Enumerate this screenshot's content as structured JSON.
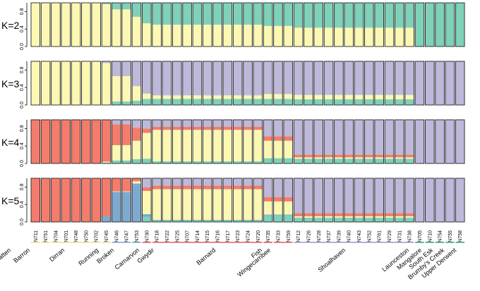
{
  "chart_data": {
    "type": "structure-barplot",
    "colors": {
      "yellow": "#fcf8b3",
      "teal": "#7fd1b9",
      "lavender": "#beb9da",
      "red": "#f47c6c",
      "blue": "#7eaad0",
      "cream": "#f4e4ab"
    },
    "yticks": [
      "0.0",
      "0.4",
      "0.8"
    ],
    "sample_labels": [
      {
        "idx": 0,
        "label": "N711"
      },
      {
        "idx": 1,
        "label": "N751"
      },
      {
        "idx": 2,
        "label": "N704"
      },
      {
        "idx": 3,
        "label": "N701"
      },
      {
        "idx": 4,
        "label": "N748"
      },
      {
        "idx": 5,
        "label": "N750"
      },
      {
        "idx": 6,
        "label": "N702"
      },
      {
        "idx": 7,
        "label": "N745"
      },
      {
        "idx": 8,
        "label": "N746"
      },
      {
        "idx": 9,
        "label": "N747"
      },
      {
        "idx": 10,
        "label": "N753"
      },
      {
        "idx": 11,
        "label": "N730"
      },
      {
        "idx": 12,
        "label": "N718"
      },
      {
        "idx": 13,
        "label": "N722"
      },
      {
        "idx": 14,
        "label": "N725"
      },
      {
        "idx": 15,
        "label": "N707"
      },
      {
        "idx": 16,
        "label": "N714"
      },
      {
        "idx": 17,
        "label": "N715"
      },
      {
        "idx": 18,
        "label": "N716"
      },
      {
        "idx": 19,
        "label": "N717"
      },
      {
        "idx": 20,
        "label": "N723"
      },
      {
        "idx": 21,
        "label": "N724"
      },
      {
        "idx": 22,
        "label": "N720"
      },
      {
        "idx": 23,
        "label": "N735"
      },
      {
        "idx": 24,
        "label": "N733"
      },
      {
        "idx": 25,
        "label": "N759"
      },
      {
        "idx": 26,
        "label": "N712"
      },
      {
        "idx": 27,
        "label": "N726"
      },
      {
        "idx": 28,
        "label": "N728"
      },
      {
        "idx": 29,
        "label": "N737"
      },
      {
        "idx": 30,
        "label": "N739"
      },
      {
        "idx": 31,
        "label": "N740"
      },
      {
        "idx": 32,
        "label": "N743"
      },
      {
        "idx": 33,
        "label": "N752"
      },
      {
        "idx": 34,
        "label": "N761"
      },
      {
        "idx": 35,
        "label": "N729"
      },
      {
        "idx": 36,
        "label": "N731"
      },
      {
        "idx": 37,
        "label": "N738"
      },
      {
        "idx": 38,
        "label": "N705"
      },
      {
        "idx": 39,
        "label": "N710"
      },
      {
        "idx": 40,
        "label": "N754"
      },
      {
        "idx": 41,
        "label": "N755"
      },
      {
        "idx": 42,
        "label": "N758"
      }
    ],
    "populations": [
      {
        "name": "Julatten",
        "from": 0,
        "to": 0,
        "color": "#e8e08a"
      },
      {
        "name": "Barron",
        "from": 1,
        "to": 1,
        "color": "#e8e08a"
      },
      {
        "name": "Dirran",
        "from": 2,
        "to": 6,
        "color": "#e8e08a"
      },
      {
        "name": "Running",
        "from": 7,
        "to": 7,
        "color": "#e8e08a"
      },
      {
        "name": "Broken",
        "from": 8,
        "to": 9,
        "color": "#7ea6cc"
      },
      {
        "name": "Carnarvon",
        "from": 10,
        "to": 10,
        "color": "#7ea6cc"
      },
      {
        "name": "Gwydir",
        "from": 11,
        "to": 11,
        "color": "#e06060"
      },
      {
        "name": "Barnard",
        "from": 12,
        "to": 22,
        "color": "#e06060"
      },
      {
        "name": "Fish",
        "from": 23,
        "to": 23,
        "color": "#e06060"
      },
      {
        "name": "Wingecarribee",
        "from": 24,
        "to": 25,
        "color": "#e06060"
      },
      {
        "name": "Shoalhaven",
        "from": 26,
        "to": 37,
        "color": "#9f95c8"
      },
      {
        "name": "Launceston",
        "from": 38,
        "to": 38,
        "color": "#3aa888"
      },
      {
        "name": "Mangalore",
        "from": 39,
        "to": 39,
        "color": "#3aa888"
      },
      {
        "name": "South Esk",
        "from": 40,
        "to": 40,
        "color": "#3aa888"
      },
      {
        "name": "Brumby's Creek",
        "from": 41,
        "to": 41,
        "color": "#3aa888"
      },
      {
        "name": "Upper Derwent",
        "from": 42,
        "to": 42,
        "color": "#3aa888"
      }
    ],
    "panels": [
      {
        "label": "K=2",
        "segment_colors": [
          "yellow",
          "teal"
        ],
        "groups": [
          {
            "from": 0,
            "to": 6,
            "q": [
              1.0,
              0.0
            ]
          },
          {
            "from": 7,
            "to": 7,
            "q": [
              0.97,
              0.03
            ]
          },
          {
            "from": 8,
            "to": 9,
            "q": [
              0.85,
              0.15
            ]
          },
          {
            "from": 10,
            "to": 10,
            "q": [
              0.68,
              0.32
            ]
          },
          {
            "from": 11,
            "to": 11,
            "q": [
              0.53,
              0.47
            ]
          },
          {
            "from": 12,
            "to": 22,
            "q": [
              0.5,
              0.5
            ]
          },
          {
            "from": 23,
            "to": 25,
            "q": [
              0.47,
              0.53
            ]
          },
          {
            "from": 26,
            "to": 37,
            "q": [
              0.43,
              0.57
            ]
          },
          {
            "from": 38,
            "to": 42,
            "q": [
              0.0,
              1.0
            ]
          }
        ]
      },
      {
        "label": "K=3",
        "segment_colors": [
          "teal",
          "yellow",
          "lavender"
        ],
        "groups": [
          {
            "from": 0,
            "to": 6,
            "q": [
              0.0,
              1.0,
              0.0
            ]
          },
          {
            "from": 7,
            "to": 7,
            "q": [
              0.0,
              0.96,
              0.04
            ]
          },
          {
            "from": 8,
            "to": 9,
            "q": [
              0.08,
              0.58,
              0.34
            ]
          },
          {
            "from": 10,
            "to": 10,
            "q": [
              0.1,
              0.33,
              0.57
            ]
          },
          {
            "from": 11,
            "to": 11,
            "q": [
              0.14,
              0.12,
              0.74
            ]
          },
          {
            "from": 12,
            "to": 22,
            "q": [
              0.14,
              0.08,
              0.78
            ]
          },
          {
            "from": 23,
            "to": 25,
            "q": [
              0.14,
              0.11,
              0.75
            ]
          },
          {
            "from": 26,
            "to": 37,
            "q": [
              0.13,
              0.1,
              0.77
            ]
          },
          {
            "from": 38,
            "to": 42,
            "q": [
              0.0,
              0.0,
              1.0
            ]
          }
        ]
      },
      {
        "label": "K=4",
        "segment_colors": [
          "teal",
          "yellow",
          "red",
          "lavender"
        ],
        "groups": [
          {
            "from": 0,
            "to": 6,
            "q": [
              0.0,
              0.0,
              1.0,
              0.0
            ]
          },
          {
            "from": 7,
            "to": 7,
            "q": [
              0.02,
              0.02,
              0.96,
              0.0
            ]
          },
          {
            "from": 8,
            "to": 9,
            "q": [
              0.07,
              0.35,
              0.48,
              0.1
            ]
          },
          {
            "from": 10,
            "to": 10,
            "q": [
              0.1,
              0.42,
              0.3,
              0.18
            ]
          },
          {
            "from": 11,
            "to": 11,
            "q": [
              0.11,
              0.59,
              0.1,
              0.2
            ]
          },
          {
            "from": 12,
            "to": 22,
            "q": [
              0.05,
              0.72,
              0.07,
              0.16
            ]
          },
          {
            "from": 23,
            "to": 25,
            "q": [
              0.12,
              0.4,
              0.1,
              0.38
            ]
          },
          {
            "from": 26,
            "to": 37,
            "q": [
              0.11,
              0.03,
              0.06,
              0.8
            ]
          },
          {
            "from": 38,
            "to": 42,
            "q": [
              0.0,
              0.0,
              0.0,
              1.0
            ]
          }
        ]
      },
      {
        "label": "K=5",
        "segment_colors": [
          "teal",
          "blue",
          "yellow",
          "red",
          "lavender"
        ],
        "groups": [
          {
            "from": 0,
            "to": 6,
            "q": [
              0.0,
              0.0,
              0.0,
              1.0,
              0.0
            ]
          },
          {
            "from": 7,
            "to": 7,
            "q": [
              0.0,
              0.13,
              0.0,
              0.87,
              0.0
            ]
          },
          {
            "from": 8,
            "to": 9,
            "q": [
              0.0,
              0.69,
              0.01,
              0.3,
              0.0
            ]
          },
          {
            "from": 10,
            "to": 10,
            "q": [
              0.0,
              0.88,
              0.05,
              0.07,
              0.0
            ]
          },
          {
            "from": 11,
            "to": 11,
            "q": [
              0.12,
              0.06,
              0.53,
              0.08,
              0.21
            ]
          },
          {
            "from": 12,
            "to": 22,
            "q": [
              0.04,
              0.01,
              0.7,
              0.08,
              0.17
            ]
          },
          {
            "from": 23,
            "to": 25,
            "q": [
              0.15,
              0.02,
              0.3,
              0.1,
              0.43
            ]
          },
          {
            "from": 26,
            "to": 37,
            "q": [
              0.1,
              0.0,
              0.03,
              0.07,
              0.8
            ]
          },
          {
            "from": 38,
            "to": 42,
            "q": [
              0.0,
              0.0,
              0.0,
              0.0,
              1.0
            ]
          }
        ]
      }
    ]
  }
}
